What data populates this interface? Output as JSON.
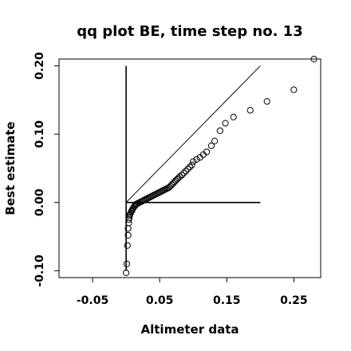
{
  "chart_data": {
    "type": "scatter",
    "title": "qq plot BE, time step no. 13",
    "xlabel": "Altimeter data",
    "ylabel": "Best estimate",
    "xlim": [
      -0.1,
      0.29
    ],
    "ylim": [
      -0.11,
      0.21
    ],
    "x_ticks": [
      -0.05,
      0.05,
      0.15,
      0.25
    ],
    "x_tick_labels": [
      "-0.05",
      "0.05",
      "0.15",
      "0.25"
    ],
    "y_ticks": [
      -0.1,
      0.0,
      0.1,
      0.2
    ],
    "y_tick_labels": [
      "-0.10",
      "0.00",
      "0.10",
      "0.20"
    ],
    "grid": false,
    "marker": "open-circle",
    "reference_lines": [
      {
        "kind": "diagonal",
        "from": [
          0.0,
          0.0
        ],
        "to": [
          0.2,
          0.2
        ]
      },
      {
        "kind": "vertical",
        "from": [
          0.0,
          -0.1
        ],
        "to": [
          0.0,
          0.2
        ]
      },
      {
        "kind": "horizontal",
        "from": [
          0.0,
          0.0
        ],
        "to": [
          0.2,
          0.0
        ]
      }
    ],
    "points": {
      "x": [
        0.0,
        0.001,
        0.002,
        0.003,
        0.003,
        0.004,
        0.004,
        0.005,
        0.005,
        0.006,
        0.007,
        0.008,
        0.009,
        0.01,
        0.011,
        0.012,
        0.013,
        0.014,
        0.015,
        0.016,
        0.018,
        0.02,
        0.022,
        0.024,
        0.026,
        0.028,
        0.03,
        0.032,
        0.034,
        0.036,
        0.038,
        0.04,
        0.042,
        0.044,
        0.046,
        0.048,
        0.05,
        0.052,
        0.054,
        0.056,
        0.058,
        0.06,
        0.062,
        0.064,
        0.066,
        0.068,
        0.07,
        0.072,
        0.074,
        0.076,
        0.078,
        0.08,
        0.083,
        0.086,
        0.089,
        0.092,
        0.095,
        0.098,
        0.1,
        0.105,
        0.11,
        0.115,
        0.12,
        0.127,
        0.132,
        0.14,
        0.148,
        0.16,
        0.185,
        0.21,
        0.25,
        0.28
      ],
      "y": [
        -0.103,
        -0.09,
        -0.063,
        -0.048,
        -0.038,
        -0.03,
        -0.025,
        -0.022,
        -0.019,
        -0.017,
        -0.015,
        -0.013,
        -0.011,
        -0.009,
        -0.008,
        -0.006,
        -0.005,
        -0.004,
        -0.003,
        -0.002,
        -0.001,
        0.0,
        0.001,
        0.002,
        0.003,
        0.004,
        0.005,
        0.006,
        0.007,
        0.008,
        0.009,
        0.01,
        0.011,
        0.012,
        0.013,
        0.014,
        0.015,
        0.016,
        0.017,
        0.018,
        0.019,
        0.02,
        0.021,
        0.022,
        0.024,
        0.026,
        0.028,
        0.03,
        0.032,
        0.034,
        0.036,
        0.038,
        0.04,
        0.043,
        0.046,
        0.049,
        0.052,
        0.055,
        0.06,
        0.063,
        0.066,
        0.07,
        0.074,
        0.083,
        0.09,
        0.105,
        0.116,
        0.125,
        0.135,
        0.148,
        0.165,
        0.21
      ]
    }
  }
}
